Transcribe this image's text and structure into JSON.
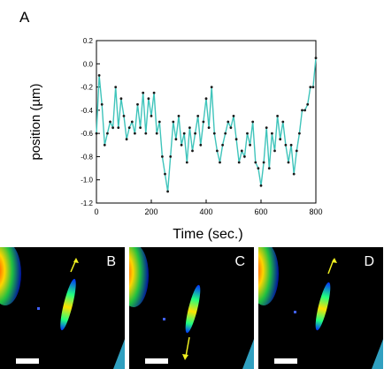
{
  "figure": {
    "panel_a_label": "A",
    "panel_labels": [
      "B",
      "C",
      "D"
    ]
  },
  "chart_data": {
    "type": "line",
    "xlabel": "Time (sec.)",
    "ylabel": "position (µm)",
    "xlim": [
      0,
      800
    ],
    "ylim": [
      -1.2,
      0.2
    ],
    "xticks": [
      "0",
      "200",
      "400",
      "600",
      "800"
    ],
    "yticks": [
      "0.2",
      "0.0",
      "-0.2",
      "-0.4",
      "-0.6",
      "-0.8",
      "-1.0",
      "-1.2"
    ],
    "grid": false,
    "line_color": "#3fc4bb",
    "marker_color": "#1a1a1a",
    "series": [
      {
        "x": [
          0,
          10,
          20,
          30,
          40,
          50,
          60,
          70,
          80,
          90,
          100,
          110,
          120,
          130,
          140,
          150,
          160,
          170,
          180,
          190,
          200,
          210,
          220,
          230,
          240,
          250,
          260,
          270,
          280,
          290,
          300,
          310,
          320,
          330,
          340,
          350,
          360,
          370,
          380,
          390,
          400,
          410,
          420,
          430,
          440,
          450,
          460,
          470,
          480,
          490,
          500,
          510,
          520,
          530,
          540,
          550,
          560,
          570,
          580,
          590,
          600,
          610,
          620,
          630,
          640,
          650,
          660,
          670,
          680,
          690,
          700,
          710,
          720,
          730,
          740,
          750,
          760,
          770,
          780,
          790,
          800
        ],
        "values": [
          -0.6,
          -0.1,
          -0.35,
          -0.7,
          -0.6,
          -0.5,
          -0.55,
          -0.2,
          -0.55,
          -0.3,
          -0.45,
          -0.65,
          -0.55,
          -0.5,
          -0.6,
          -0.35,
          -0.55,
          -0.25,
          -0.6,
          -0.3,
          -0.45,
          -0.25,
          -0.6,
          -0.5,
          -0.8,
          -0.95,
          -1.1,
          -0.8,
          -0.5,
          -0.65,
          -0.45,
          -0.7,
          -0.6,
          -0.85,
          -0.55,
          -0.75,
          -0.6,
          -0.45,
          -0.7,
          -0.5,
          -0.3,
          -0.55,
          -0.2,
          -0.6,
          -0.75,
          -0.85,
          -0.7,
          -0.6,
          -0.5,
          -0.55,
          -0.45,
          -0.65,
          -0.85,
          -0.75,
          -0.8,
          -0.6,
          -0.7,
          -0.5,
          -0.85,
          -0.9,
          -1.05,
          -0.85,
          -0.55,
          -0.9,
          -0.6,
          -0.75,
          -0.45,
          -0.65,
          -0.5,
          -0.7,
          -0.85,
          -0.7,
          -0.95,
          -0.75,
          -0.6,
          -0.4,
          -0.4,
          -0.35,
          -0.2,
          -0.2,
          0.05
        ]
      }
    ]
  }
}
